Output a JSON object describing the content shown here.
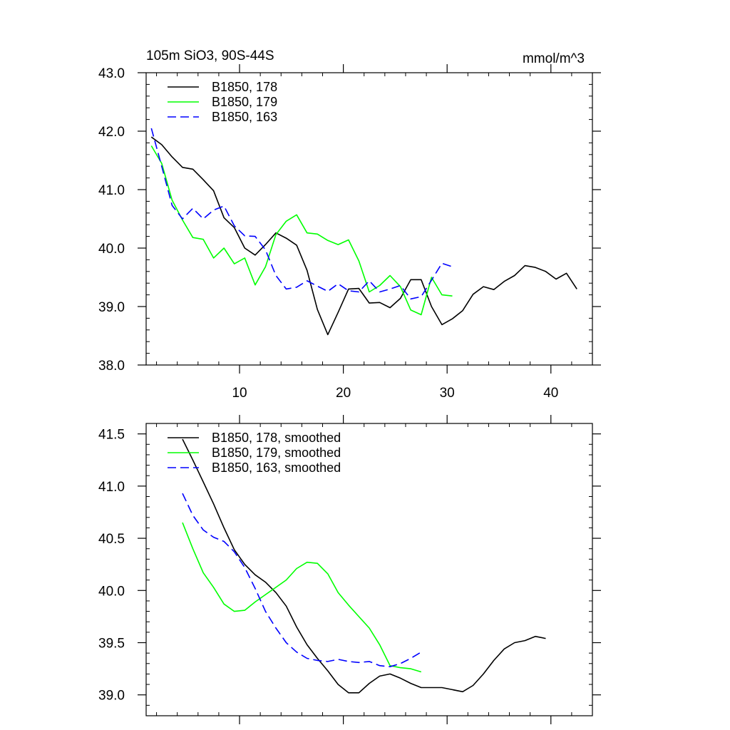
{
  "chart_data": [
    {
      "type": "line",
      "title": "105m SiO3, 90S-44S",
      "units": "mmol/m^3",
      "xlim": [
        1,
        44
      ],
      "ylim": [
        38.0,
        43.0
      ],
      "x_ticks": [
        10,
        20,
        30,
        40
      ],
      "x_tick_labels": [
        "10",
        "20",
        "30",
        "40"
      ],
      "y_ticks": [
        38.0,
        39.0,
        40.0,
        41.0,
        42.0,
        43.0
      ],
      "y_tick_labels": [
        "38.0",
        "39.0",
        "40.0",
        "41.0",
        "42.0",
        "43.0"
      ],
      "legend_position": "top-left",
      "series": [
        {
          "name": "B1850, 178",
          "color": "#000000",
          "dash": "solid",
          "x": [
            1.5,
            2.5,
            3.5,
            4.5,
            5.5,
            6.5,
            7.5,
            8.5,
            9.5,
            10.5,
            11.5,
            12.5,
            13.5,
            14.5,
            15.5,
            16.5,
            17.5,
            18.5,
            19.5,
            20.5,
            21.5,
            22.5,
            23.5,
            24.5,
            25.5,
            26.5,
            27.5,
            28.5,
            29.5,
            30.5,
            31.5,
            32.5,
            33.5,
            34.5,
            35.5,
            36.5,
            37.5,
            38.5,
            39.5,
            40.5,
            41.5,
            42.5
          ],
          "y": [
            41.9,
            41.77,
            41.56,
            41.38,
            41.35,
            41.17,
            40.98,
            40.52,
            40.35,
            40.0,
            39.88,
            40.06,
            40.26,
            40.17,
            40.05,
            39.62,
            38.95,
            38.52,
            38.9,
            39.3,
            39.31,
            39.06,
            39.07,
            38.98,
            39.14,
            39.46,
            39.46,
            39.0,
            38.69,
            38.79,
            38.93,
            39.21,
            39.34,
            39.29,
            39.43,
            39.53,
            39.7,
            39.67,
            39.6,
            39.47,
            39.57,
            39.3
          ]
        },
        {
          "name": "B1850, 179",
          "color": "#00ff00",
          "dash": "solid",
          "x": [
            1.5,
            2.5,
            3.5,
            4.5,
            5.5,
            6.5,
            7.5,
            8.5,
            9.5,
            10.5,
            11.5,
            12.5,
            13.5,
            14.5,
            15.5,
            16.5,
            17.5,
            18.5,
            19.5,
            20.5,
            21.5,
            22.5,
            23.5,
            24.5,
            25.5,
            26.5,
            27.5,
            28.5,
            29.5,
            30.5
          ],
          "y": [
            41.75,
            41.45,
            40.82,
            40.48,
            40.18,
            40.15,
            39.83,
            40.0,
            39.73,
            39.83,
            39.37,
            39.68,
            40.23,
            40.46,
            40.57,
            40.26,
            40.24,
            40.13,
            40.06,
            40.14,
            39.78,
            39.25,
            39.36,
            39.53,
            39.34,
            38.94,
            38.86,
            39.5,
            39.2,
            39.18
          ]
        },
        {
          "name": "B1850, 163",
          "color": "#0000ff",
          "dash": "dashed",
          "x": [
            1.5,
            2.5,
            3.5,
            4.5,
            5.5,
            6.5,
            7.5,
            8.5,
            9.5,
            10.5,
            11.5,
            12.5,
            13.5,
            14.5,
            15.5,
            16.5,
            17.5,
            18.5,
            19.5,
            20.5,
            21.5,
            22.5,
            23.5,
            24.5,
            25.5,
            26.5,
            27.5,
            28.5,
            29.5,
            30.5
          ],
          "y": [
            42.05,
            41.4,
            40.73,
            40.5,
            40.68,
            40.5,
            40.65,
            40.72,
            40.38,
            40.21,
            40.2,
            39.97,
            39.53,
            39.3,
            39.33,
            39.44,
            39.35,
            39.26,
            39.39,
            39.27,
            39.25,
            39.44,
            39.25,
            39.3,
            39.36,
            39.13,
            39.17,
            39.45,
            39.74,
            39.68
          ]
        }
      ]
    },
    {
      "type": "line",
      "title": "",
      "xlim": [
        1,
        44
      ],
      "ylim": [
        38.8,
        41.6
      ],
      "x_ticks": [
        10,
        20,
        30,
        40
      ],
      "x_tick_labels": [],
      "y_ticks": [
        39.0,
        39.5,
        40.0,
        40.5,
        41.0,
        41.5
      ],
      "y_tick_labels": [
        "39.0",
        "39.5",
        "40.0",
        "40.5",
        "41.0",
        "41.5"
      ],
      "legend_position": "top-left",
      "series": [
        {
          "name": "B1850, 178, smoothed",
          "color": "#000000",
          "dash": "solid",
          "x": [
            4.5,
            5.5,
            6.5,
            7.5,
            8.5,
            9.5,
            10.5,
            11.5,
            12.5,
            13.5,
            14.5,
            15.5,
            16.5,
            17.5,
            18.5,
            19.5,
            20.5,
            21.5,
            22.5,
            23.5,
            24.5,
            25.5,
            26.5,
            27.5,
            28.5,
            29.5,
            30.5,
            31.5,
            32.5,
            33.5,
            34.5,
            35.5,
            36.5,
            37.5,
            38.5,
            39.5
          ],
          "y": [
            41.45,
            41.25,
            41.04,
            40.83,
            40.6,
            40.39,
            40.25,
            40.15,
            40.08,
            39.98,
            39.85,
            39.65,
            39.48,
            39.35,
            39.23,
            39.1,
            39.02,
            39.02,
            39.11,
            39.18,
            39.2,
            39.16,
            39.11,
            39.07,
            39.07,
            39.07,
            39.05,
            39.03,
            39.09,
            39.2,
            39.33,
            39.44,
            39.5,
            39.52,
            39.56,
            39.54
          ]
        },
        {
          "name": "B1850, 179, smoothed",
          "color": "#00ff00",
          "dash": "solid",
          "x": [
            4.5,
            5.5,
            6.5,
            7.5,
            8.5,
            9.5,
            10.5,
            11.5,
            12.5,
            13.5,
            14.5,
            15.5,
            16.5,
            17.5,
            18.5,
            19.5,
            20.5,
            21.5,
            22.5,
            23.5,
            24.5,
            25.5,
            26.5,
            27.5
          ],
          "y": [
            40.65,
            40.4,
            40.17,
            40.03,
            39.87,
            39.8,
            39.81,
            39.89,
            39.96,
            40.03,
            40.1,
            40.21,
            40.27,
            40.26,
            40.16,
            39.98,
            39.86,
            39.75,
            39.64,
            39.48,
            39.28,
            39.26,
            39.25,
            39.22
          ]
        },
        {
          "name": "B1850, 163, smoothed",
          "color": "#0000ff",
          "dash": "dashed",
          "x": [
            4.5,
            5.5,
            6.5,
            7.5,
            8.5,
            9.5,
            10.5,
            11.5,
            12.5,
            13.5,
            14.5,
            15.5,
            16.5,
            17.5,
            18.5,
            19.5,
            20.5,
            21.5,
            22.5,
            23.5,
            24.5,
            25.5,
            26.5,
            27.5
          ],
          "y": [
            40.93,
            40.72,
            40.58,
            40.51,
            40.47,
            40.37,
            40.22,
            40.02,
            39.8,
            39.64,
            39.5,
            39.41,
            39.35,
            39.33,
            39.32,
            39.34,
            39.32,
            39.31,
            39.32,
            39.28,
            39.27,
            39.3,
            39.35,
            39.41
          ]
        }
      ]
    }
  ]
}
